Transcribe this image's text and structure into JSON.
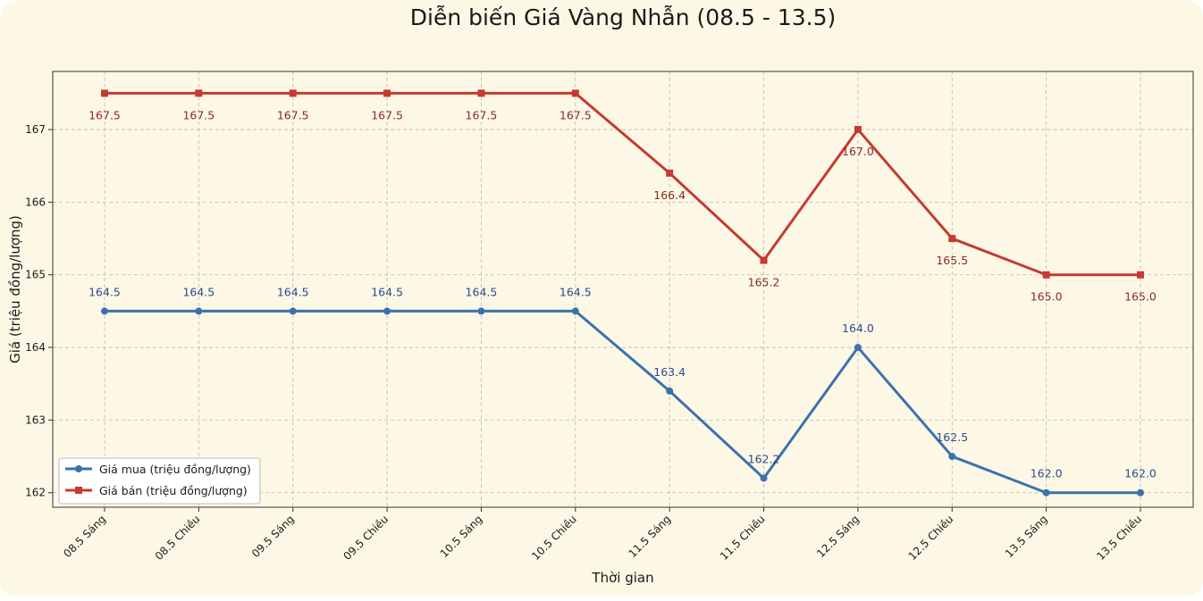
{
  "chart_data": {
    "type": "line",
    "title": "Diễn biến Giá Vàng Nhẫn (08.5 - 13.5)",
    "xlabel": "Thời gian",
    "ylabel": "Giá (triệu đồng/lượng)",
    "categories": [
      "08.5 Sáng",
      "08.5 Chiều",
      "09.5 Sáng",
      "09.5 Chiều",
      "10.5 Sáng",
      "10.5 Chiều",
      "11.5 Sáng",
      "11.5 Chiều",
      "12.5 Sáng",
      "12.5 Chiều",
      "13.5 Sáng",
      "13.5 Chiều"
    ],
    "ylim": [
      161.8,
      167.8
    ],
    "yticks": [
      162,
      163,
      164,
      165,
      166,
      167
    ],
    "grid": true,
    "legend_position": "lower-left",
    "series": [
      {
        "name": "Giá mua (triệu đồng/lượng)",
        "color": "#3b72ad",
        "marker": "circle",
        "values": [
          164.5,
          164.5,
          164.5,
          164.5,
          164.5,
          164.5,
          163.4,
          162.2,
          164.0,
          162.5,
          162.0,
          162.0
        ],
        "labels": [
          "164.5",
          "164.5",
          "164.5",
          "164.5",
          "164.5",
          "164.5",
          "163.4",
          "162.2",
          "164.0",
          "162.5",
          "162.0",
          "162.0"
        ],
        "label_color": "#2c4a8e",
        "label_side": "above"
      },
      {
        "name": "Giá bán (triệu đồng/lượng)",
        "color": "#c53a32",
        "marker": "square",
        "values": [
          167.5,
          167.5,
          167.5,
          167.5,
          167.5,
          167.5,
          166.4,
          165.2,
          167.0,
          165.5,
          165.0,
          165.0
        ],
        "labels": [
          "167.5",
          "167.5",
          "167.5",
          "167.5",
          "167.5",
          "167.5",
          "166.4",
          "165.2",
          "167.0",
          "165.5",
          "165.0",
          "165.0"
        ],
        "label_color": "#8a2a22",
        "label_side": "below"
      }
    ]
  }
}
